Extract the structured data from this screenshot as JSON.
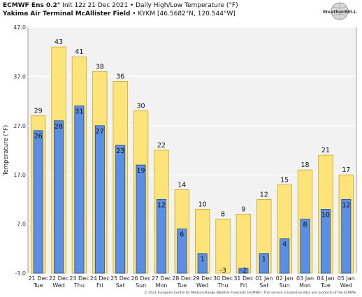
{
  "header": {
    "line1_bold": "ECMWF Ens 0.2°",
    "line1_rest": " Init 12z 21 Dec 2021 • Daily High/Low Temperature (°F)",
    "line2_bold": "Yakima Air Terminal McAllister Field",
    "line2_rest": " • KYKM [46.5682°N, 120.544°W]"
  },
  "logo": {
    "text": "WeatherBELL",
    "icon": "globe-logo-icon"
  },
  "footer": "© 2021 European Centre for Medium-Range Weather Forecasts (ECMWF). This service is based on data and products of the ECMWF.",
  "colors": {
    "high_fill": "#fde47a",
    "high_stroke": "#c9a82a",
    "low_fill": "#5b8fe6",
    "low_stroke": "#23489a",
    "plot_bg": "#f2f2f2",
    "grid": "#ffffff"
  },
  "chart_data": {
    "type": "bar",
    "ylabel": "Temperature (°F)",
    "ylim": [
      -3.0,
      47.0
    ],
    "yticks": [
      "-3.0",
      "7.0",
      "17.0",
      "27.0",
      "37.0",
      "47.0"
    ],
    "ytick_values": [
      -3,
      7,
      17,
      27,
      37,
      47
    ],
    "categories": [
      [
        "21 Dec",
        "Tue"
      ],
      [
        "22 Dec",
        "Wed"
      ],
      [
        "23 Dec",
        "Thu"
      ],
      [
        "24 Dec",
        "Fri"
      ],
      [
        "25 Dec",
        "Sat"
      ],
      [
        "26 Dec",
        "Sun"
      ],
      [
        "27 Dec",
        "Mon"
      ],
      [
        "28 Dec",
        "Tue"
      ],
      [
        "29 Dec",
        "Wed"
      ],
      [
        "30 Dec",
        "Thu"
      ],
      [
        "31 Dec",
        "Fri"
      ],
      [
        "01 Jan",
        "Sat"
      ],
      [
        "02 Jan",
        "Sun"
      ],
      [
        "03 Jan",
        "Mon"
      ],
      [
        "04 Jan",
        "Tue"
      ],
      [
        "05 Jan",
        "Wed"
      ]
    ],
    "series": [
      {
        "values": [
          29,
          43,
          41,
          38,
          36,
          30,
          22,
          14,
          10,
          8,
          9,
          12,
          15,
          18,
          21,
          17
        ]
      },
      {
        "values": [
          26,
          28,
          31,
          27,
          23,
          19,
          12,
          6,
          1,
          -3,
          -2,
          1,
          4,
          8,
          10,
          12
        ]
      }
    ]
  }
}
